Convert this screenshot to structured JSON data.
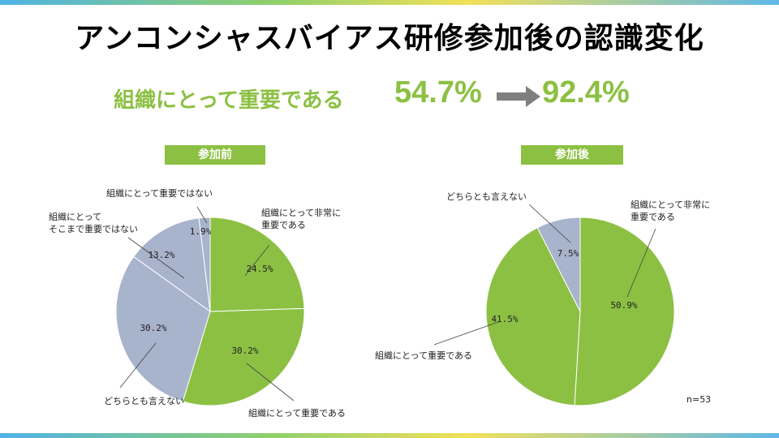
{
  "title": "アンコンシャスバイアス研修参加後の認識変化",
  "headline": {
    "label": "組織にとって重要である",
    "before": "54.7%",
    "after": "92.4%"
  },
  "colors": {
    "green": "#8cc043",
    "grey": "#a8b3cc",
    "arrow": "#7f7f7f",
    "leader": "#444444"
  },
  "sample_note": "n=53",
  "chart_data": [
    {
      "type": "pie",
      "title": "参加前",
      "slices": [
        {
          "name": "組織にとって非常に重要である",
          "label_lines": [
            "組織にとって非常に",
            "重要である"
          ],
          "value": 24.5,
          "pct_label": "24.5%",
          "color": "green"
        },
        {
          "name": "組織にとって重要である",
          "label_lines": [
            "組織にとって重要である"
          ],
          "value": 30.2,
          "pct_label": "30.2%",
          "color": "green"
        },
        {
          "name": "どちらとも言えない",
          "label_lines": [
            "どちらとも言えない"
          ],
          "value": 30.2,
          "pct_label": "30.2%",
          "color": "grey"
        },
        {
          "name": "組織にとってそこまで重要ではない",
          "label_lines": [
            "組織にとって",
            "そこまで重要ではない"
          ],
          "value": 13.2,
          "pct_label": "13.2%",
          "color": "grey"
        },
        {
          "name": "組織にとって重要ではない",
          "label_lines": [
            "組織にとって重要ではない"
          ],
          "value": 1.9,
          "pct_label": "1.9%",
          "color": "grey"
        }
      ]
    },
    {
      "type": "pie",
      "title": "参加後",
      "slices": [
        {
          "name": "組織にとって非常に重要である",
          "label_lines": [
            "組織にとって非常に",
            "重要である"
          ],
          "value": 50.9,
          "pct_label": "50.9%",
          "color": "green"
        },
        {
          "name": "組織にとって重要である",
          "label_lines": [
            "組織にとって重要である"
          ],
          "value": 41.5,
          "pct_label": "41.5%",
          "color": "green"
        },
        {
          "name": "どちらとも言えない",
          "label_lines": [
            "どちらとも言えない"
          ],
          "value": 7.5,
          "pct_label": "7.5%",
          "color": "grey"
        }
      ]
    }
  ]
}
